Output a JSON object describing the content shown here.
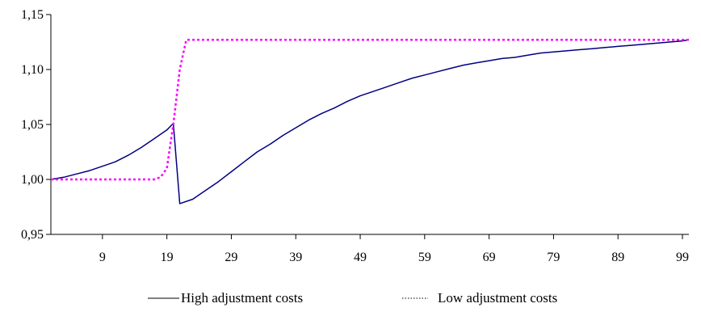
{
  "chart_data": {
    "type": "line",
    "title": "",
    "xlabel": "",
    "ylabel": "",
    "xlim": [
      1,
      100
    ],
    "ylim": [
      0.95,
      1.15
    ],
    "grid": false,
    "legend_position": "bottom",
    "x_ticks": [
      {
        "value": 9,
        "label": "9"
      },
      {
        "value": 19,
        "label": "19"
      },
      {
        "value": 29,
        "label": "29"
      },
      {
        "value": 39,
        "label": "39"
      },
      {
        "value": 49,
        "label": "49"
      },
      {
        "value": 59,
        "label": "59"
      },
      {
        "value": 69,
        "label": "69"
      },
      {
        "value": 79,
        "label": "79"
      },
      {
        "value": 89,
        "label": "89"
      },
      {
        "value": 99,
        "label": "99"
      }
    ],
    "y_ticks": [
      {
        "value": 0.95,
        "label": "0,95"
      },
      {
        "value": 1.0,
        "label": "1,00"
      },
      {
        "value": 1.05,
        "label": "1,05"
      },
      {
        "value": 1.1,
        "label": "1,10"
      },
      {
        "value": 1.15,
        "label": "1,15"
      }
    ],
    "series": [
      {
        "name": "High adjustment costs",
        "color": "#000080",
        "style": "solid",
        "points": [
          [
            1,
            1.0
          ],
          [
            3,
            1.002
          ],
          [
            5,
            1.005
          ],
          [
            7,
            1.008
          ],
          [
            9,
            1.012
          ],
          [
            11,
            1.016
          ],
          [
            13,
            1.022
          ],
          [
            15,
            1.029
          ],
          [
            17,
            1.037
          ],
          [
            19,
            1.045
          ],
          [
            20,
            1.051
          ],
          [
            21,
            0.978
          ],
          [
            23,
            0.982
          ],
          [
            25,
            0.99
          ],
          [
            27,
            0.998
          ],
          [
            29,
            1.007
          ],
          [
            31,
            1.016
          ],
          [
            33,
            1.025
          ],
          [
            35,
            1.032
          ],
          [
            37,
            1.04
          ],
          [
            39,
            1.047
          ],
          [
            41,
            1.054
          ],
          [
            43,
            1.06
          ],
          [
            45,
            1.065
          ],
          [
            47,
            1.071
          ],
          [
            49,
            1.076
          ],
          [
            51,
            1.08
          ],
          [
            53,
            1.084
          ],
          [
            55,
            1.088
          ],
          [
            57,
            1.092
          ],
          [
            59,
            1.095
          ],
          [
            61,
            1.098
          ],
          [
            63,
            1.101
          ],
          [
            65,
            1.104
          ],
          [
            67,
            1.106
          ],
          [
            69,
            1.108
          ],
          [
            71,
            1.11
          ],
          [
            73,
            1.111
          ],
          [
            75,
            1.113
          ],
          [
            77,
            1.115
          ],
          [
            79,
            1.116
          ],
          [
            81,
            1.117
          ],
          [
            83,
            1.118
          ],
          [
            85,
            1.119
          ],
          [
            87,
            1.12
          ],
          [
            89,
            1.121
          ],
          [
            91,
            1.122
          ],
          [
            93,
            1.123
          ],
          [
            95,
            1.124
          ],
          [
            97,
            1.125
          ],
          [
            99,
            1.126
          ],
          [
            100,
            1.127
          ]
        ]
      },
      {
        "name": "Low adjustment costs",
        "color": "#ff00ff",
        "style": "dotted",
        "points": [
          [
            1,
            1.0
          ],
          [
            5,
            1.0
          ],
          [
            10,
            1.0
          ],
          [
            15,
            1.0
          ],
          [
            17,
            1.0
          ],
          [
            18,
            1.002
          ],
          [
            19,
            1.01
          ],
          [
            20,
            1.05
          ],
          [
            21,
            1.1
          ],
          [
            22,
            1.127
          ],
          [
            30,
            1.127
          ],
          [
            40,
            1.127
          ],
          [
            50,
            1.127
          ],
          [
            60,
            1.127
          ],
          [
            70,
            1.127
          ],
          [
            80,
            1.127
          ],
          [
            90,
            1.127
          ],
          [
            100,
            1.127
          ]
        ]
      }
    ]
  }
}
